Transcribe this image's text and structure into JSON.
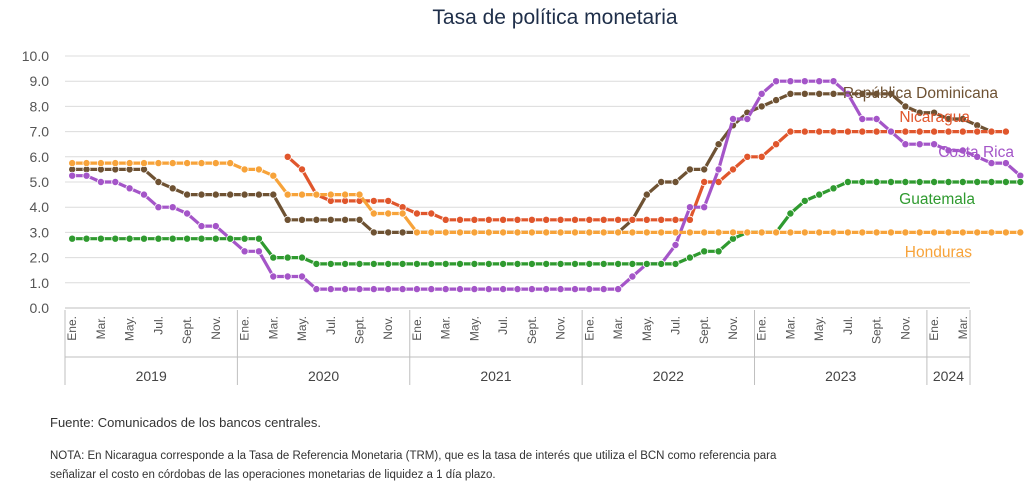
{
  "chart_data": {
    "type": "line",
    "title": "Tasa de política monetaria",
    "ylim": [
      0,
      10
    ],
    "yticks": [
      "0.0",
      "1.0",
      "2.0",
      "3.0",
      "4.0",
      "5.0",
      "6.0",
      "7.0",
      "8.0",
      "9.0",
      "10.0"
    ],
    "month_labels": [
      "Ene.",
      "Mar.",
      "May.",
      "Jul.",
      "Sept.",
      "Nov."
    ],
    "years": [
      "2019",
      "2020",
      "2021",
      "2022",
      "2023",
      "2024"
    ],
    "x_start": "2019-01",
    "x_end": "2024-03",
    "grid": true,
    "series": [
      {
        "name": "República Dominicana",
        "color": "#6e5233",
        "start_index": 0,
        "values": [
          5.5,
          5.5,
          5.5,
          5.5,
          5.5,
          5.5,
          5.0,
          4.75,
          4.5,
          4.5,
          4.5,
          4.5,
          4.5,
          4.5,
          4.5,
          3.5,
          3.5,
          3.5,
          3.5,
          3.5,
          3.5,
          3.0,
          3.0,
          3.0,
          3.0,
          3.0,
          3.0,
          3.0,
          3.0,
          3.0,
          3.0,
          3.0,
          3.0,
          3.0,
          3.0,
          3.0,
          3.0,
          3.0,
          3.0,
          3.5,
          4.5,
          5.0,
          5.0,
          5.5,
          5.5,
          6.5,
          7.25,
          7.75,
          8.0,
          8.25,
          8.5,
          8.5,
          8.5,
          8.5,
          8.5,
          8.5,
          8.5,
          8.5,
          8.0,
          7.75,
          7.75,
          7.5,
          7.5,
          7.25,
          7.0
        ]
      },
      {
        "name": "Nicaragua",
        "color": "#e0562c",
        "start_index": 15,
        "values": [
          6.0,
          5.5,
          4.5,
          4.25,
          4.25,
          4.25,
          4.25,
          4.25,
          4.0,
          3.75,
          3.75,
          3.5,
          3.5,
          3.5,
          3.5,
          3.5,
          3.5,
          3.5,
          3.5,
          3.5,
          3.5,
          3.5,
          3.5,
          3.5,
          3.5,
          3.5,
          3.5,
          3.5,
          3.5,
          5.0,
          5.0,
          5.5,
          6.0,
          6.0,
          6.5,
          7.0,
          7.0,
          7.0,
          7.0,
          7.0,
          7.0,
          7.0,
          7.0,
          7.0,
          7.0,
          7.0,
          7.0,
          7.0,
          7.0,
          7.0,
          7.0
        ]
      },
      {
        "name": "Costa Rica",
        "color": "#a455c8",
        "start_index": 0,
        "values": [
          5.25,
          5.25,
          5.0,
          5.0,
          4.75,
          4.5,
          4.0,
          4.0,
          3.75,
          3.25,
          3.25,
          2.75,
          2.25,
          2.25,
          1.25,
          1.25,
          1.25,
          0.75,
          0.75,
          0.75,
          0.75,
          0.75,
          0.75,
          0.75,
          0.75,
          0.75,
          0.75,
          0.75,
          0.75,
          0.75,
          0.75,
          0.75,
          0.75,
          0.75,
          0.75,
          0.75,
          0.75,
          0.75,
          0.75,
          1.25,
          1.75,
          1.75,
          2.5,
          4.0,
          4.0,
          5.5,
          7.5,
          7.5,
          8.5,
          9.0,
          9.0,
          9.0,
          9.0,
          9.0,
          8.5,
          7.5,
          7.5,
          7.0,
          6.5,
          6.5,
          6.5,
          6.25,
          6.25,
          6.0,
          5.75,
          5.75,
          5.25
        ]
      },
      {
        "name": "Guatemala",
        "color": "#2f9a2f",
        "start_index": 0,
        "values": [
          2.75,
          2.75,
          2.75,
          2.75,
          2.75,
          2.75,
          2.75,
          2.75,
          2.75,
          2.75,
          2.75,
          2.75,
          2.75,
          2.75,
          2.0,
          2.0,
          2.0,
          1.75,
          1.75,
          1.75,
          1.75,
          1.75,
          1.75,
          1.75,
          1.75,
          1.75,
          1.75,
          1.75,
          1.75,
          1.75,
          1.75,
          1.75,
          1.75,
          1.75,
          1.75,
          1.75,
          1.75,
          1.75,
          1.75,
          1.75,
          1.75,
          1.75,
          1.75,
          2.0,
          2.25,
          2.25,
          2.75,
          3.0,
          3.0,
          3.0,
          3.75,
          4.25,
          4.5,
          4.75,
          5.0,
          5.0,
          5.0,
          5.0,
          5.0,
          5.0,
          5.0,
          5.0,
          5.0,
          5.0,
          5.0,
          5.0,
          5.0
        ]
      },
      {
        "name": "Honduras",
        "color": "#f7a33a",
        "start_index": 0,
        "values": [
          5.75,
          5.75,
          5.75,
          5.75,
          5.75,
          5.75,
          5.75,
          5.75,
          5.75,
          5.75,
          5.75,
          5.75,
          5.5,
          5.5,
          5.25,
          4.5,
          4.5,
          4.5,
          4.5,
          4.5,
          4.5,
          3.75,
          3.75,
          3.75,
          3.0,
          3.0,
          3.0,
          3.0,
          3.0,
          3.0,
          3.0,
          3.0,
          3.0,
          3.0,
          3.0,
          3.0,
          3.0,
          3.0,
          3.0,
          3.0,
          3.0,
          3.0,
          3.0,
          3.0,
          3.0,
          3.0,
          3.0,
          3.0,
          3.0,
          3.0,
          3.0,
          3.0,
          3.0,
          3.0,
          3.0,
          3.0,
          3.0,
          3.0,
          3.0,
          3.0,
          3.0,
          3.0,
          3.0,
          3.0,
          3.0,
          3.0,
          3.0
        ]
      }
    ]
  },
  "source": "Fuente: Comunicados de los bancos centrales.",
  "note": "NOTA: En Nicaragua corresponde a la Tasa de Referencia Monetaria (TRM), que es la tasa de interés que utiliza el BCN como referencia para señalizar el costo en córdobas de las operaciones monetarias de liquidez a 1 día plazo."
}
